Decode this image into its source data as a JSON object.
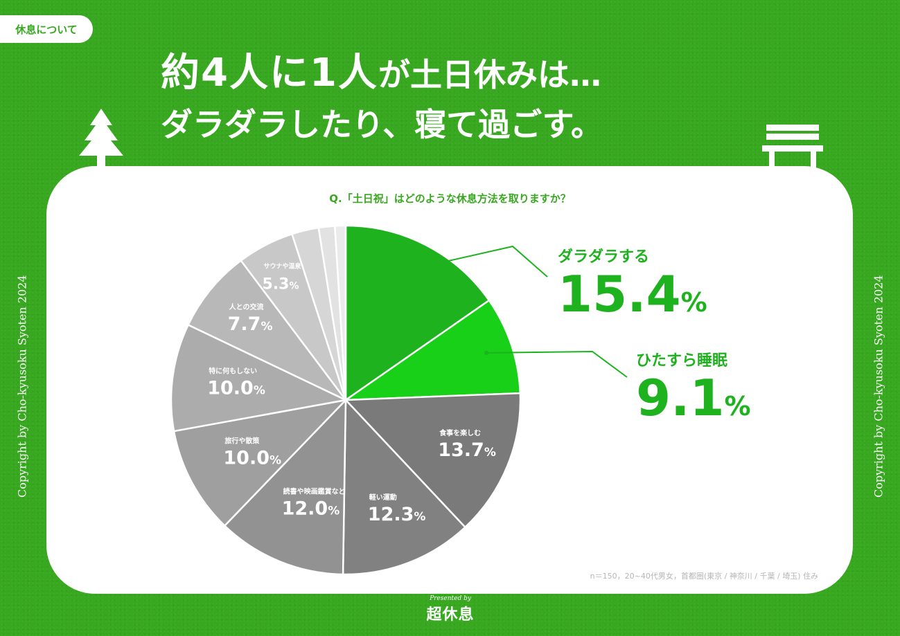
{
  "tag": "休息について",
  "headline": {
    "part1": "約4人に1人",
    "part2": "が土日休みは…",
    "line2": "ダラダラしたり、寝て過ごす。"
  },
  "question": "Q.「土日祝」はどのような休息方法を取りますか？",
  "copyright": "Copyright by Cho-kyusoku Syoten 2024",
  "footnote": "n＝150，20~40代男女，首都圏(東京 / 神奈川 / 千葉 / 埼玉) 住み",
  "presented_by": "Presented by",
  "logo": "超休息",
  "colors": {
    "background": "#37a81f",
    "accent": "#1fb21f"
  },
  "icons": [
    "tree-icon",
    "bench-icon"
  ],
  "chart_data": {
    "type": "pie",
    "title": "Q.「土日祝」はどのような休息方法を取りますか？",
    "unit": "%",
    "start": "12 o'clock, clockwise",
    "slices": [
      {
        "label": "ダラダラする",
        "value": 15.4,
        "color": "#1fb21f",
        "callout": true
      },
      {
        "label": "ひたすら睡眠",
        "value": 9.1,
        "color": "#17d017",
        "callout": true
      },
      {
        "label": "食事を楽しむ",
        "value": 13.7,
        "color": "#7a7a7a"
      },
      {
        "label": "軽い運動",
        "value": 12.3,
        "color": "#818181"
      },
      {
        "label": "読書や映画鑑賞など",
        "value": 12.0,
        "color": "#929292"
      },
      {
        "label": "旅行や散策",
        "value": 10.0,
        "color": "#9f9f9f"
      },
      {
        "label": "特に何もしない",
        "value": 10.0,
        "color": "#acacac"
      },
      {
        "label": "人との交流",
        "value": 7.7,
        "color": "#b8b8b8"
      },
      {
        "label": "サウナや温泉",
        "value": 5.3,
        "color": "#c8c8c8"
      },
      {
        "label": "",
        "value": 2.5,
        "color": "#d6d6d6"
      },
      {
        "label": "",
        "value": 1.5,
        "color": "#e2e2e2"
      },
      {
        "label": "",
        "value": 1.0,
        "color": "#ebebeb"
      }
    ]
  }
}
